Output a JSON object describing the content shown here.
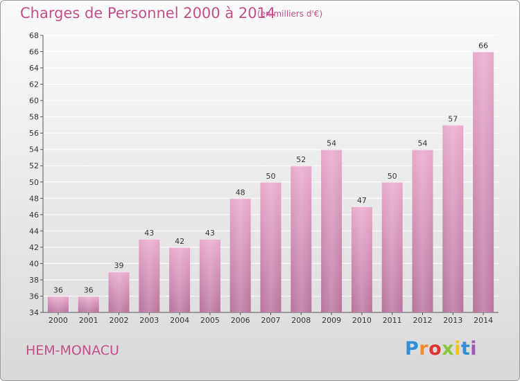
{
  "title": "Charges de Personnel 2000 à 2014",
  "subtitle": "(en milliers d'€)",
  "commune": "HEM-MONACU",
  "logo": {
    "text": "Proxiti"
  },
  "colors": {
    "title": "#c0508a",
    "bar_top": "#e8a9cc",
    "bar_bottom": "#b8739c",
    "grid": "#ffffff"
  },
  "chart_data": {
    "type": "bar",
    "title": "Charges de Personnel 2000 à 2014",
    "subtitle": "(en milliers d'€)",
    "categories": [
      "2000",
      "2001",
      "2002",
      "2003",
      "2004",
      "2005",
      "2006",
      "2007",
      "2008",
      "2009",
      "2010",
      "2011",
      "2012",
      "2013",
      "2014"
    ],
    "values": [
      36,
      36,
      39,
      43,
      42,
      43,
      48,
      50,
      52,
      54,
      47,
      50,
      54,
      57,
      66
    ],
    "ylim": [
      34,
      68
    ],
    "yticks": [
      34,
      36,
      38,
      40,
      42,
      44,
      46,
      48,
      50,
      52,
      54,
      56,
      58,
      60,
      62,
      64,
      66,
      68
    ],
    "grid": true,
    "legend": "none"
  }
}
